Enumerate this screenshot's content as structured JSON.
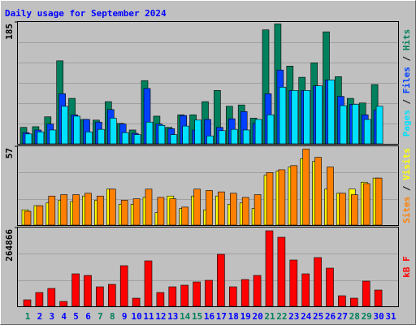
{
  "chart_data": [
    {
      "type": "bar",
      "title": "Daily usage for September 2024",
      "ylim": [
        0,
        185
      ],
      "yticks": [
        185
      ],
      "legend_separator": " / ",
      "series": [
        {
          "name": "Hits",
          "color": "#00805c",
          "values": [
            25,
            26,
            41,
            126,
            69,
            37,
            36,
            64,
            31,
            21,
            96,
            42,
            25,
            44,
            44,
            64,
            81,
            57,
            59,
            39,
            173,
            182,
            118,
            101,
            123,
            170,
            102,
            69,
            62,
            90,
            null
          ]
        },
        {
          "name": "Files",
          "color": "#0040ff",
          "values": [
            17,
            21,
            30,
            76,
            44,
            37,
            33,
            52,
            30,
            16,
            84,
            30,
            23,
            43,
            21,
            37,
            25,
            38,
            49,
            31,
            76,
            112,
            81,
            81,
            88,
            97,
            72,
            60,
            44,
            51,
            null
          ]
        },
        {
          "name": "Pages",
          "color": "#00e0ff",
          "values": [
            15,
            18,
            21,
            57,
            42,
            18,
            22,
            39,
            17,
            14,
            33,
            28,
            14,
            27,
            36,
            12,
            20,
            22,
            21,
            37,
            44,
            86,
            81,
            81,
            88,
            97,
            58,
            60,
            37,
            57,
            null
          ]
        }
      ]
    },
    {
      "type": "bar",
      "ylim": [
        0,
        57
      ],
      "yticks": [
        57
      ],
      "legend_separator": " / ",
      "series": [
        {
          "name": "Visits",
          "color": "#ffff00",
          "values": [
            11,
            14,
            16,
            18,
            17,
            21,
            18,
            26,
            15,
            15,
            20,
            9,
            21,
            12,
            21,
            11,
            21,
            15,
            16,
            12,
            36,
            39,
            42,
            48,
            46,
            26,
            23,
            26,
            31,
            34,
            null
          ]
        },
        {
          "name": "Sites",
          "color": "#ff8000",
          "values": [
            10,
            14,
            21,
            22,
            22,
            23,
            21,
            26,
            18,
            19,
            26,
            20,
            19,
            13,
            26,
            25,
            24,
            23,
            20,
            22,
            38,
            40,
            43,
            55,
            49,
            42,
            23,
            22,
            30,
            34,
            null
          ]
        }
      ]
    },
    {
      "type": "bar",
      "ylim": [
        0,
        264866
      ],
      "yticks": [
        264866
      ],
      "categories": [
        "1",
        "2",
        "3",
        "4",
        "5",
        "6",
        "7",
        "8",
        "9",
        "10",
        "11",
        "12",
        "13",
        "14",
        "15",
        "16",
        "17",
        "18",
        "19",
        "20",
        "21",
        "22",
        "23",
        "24",
        "25",
        "26",
        "27",
        "28",
        "29",
        "30",
        "31"
      ],
      "category_colors": [
        "#00805c",
        "#0000ff",
        "#0000ff",
        "#0000ff",
        "#0000ff",
        "#0000ff",
        "#00805c",
        "#00805c",
        "#0000ff",
        "#0000ff",
        "#0000ff",
        "#0000ff",
        "#0000ff",
        "#00805c",
        "#00805c",
        "#0000ff",
        "#0000ff",
        "#0000ff",
        "#0000ff",
        "#0000ff",
        "#00805c",
        "#00805c",
        "#0000ff",
        "#0000ff",
        "#0000ff",
        "#0000ff",
        "#0000ff",
        "#00805c",
        "#00805c",
        "#0000ff",
        "#0000ff"
      ],
      "series": [
        {
          "name": "kB F",
          "color": "#ff0000",
          "values": [
            21850,
            46430,
            60070,
            16390,
            109220,
            103760,
            65530,
            73720,
            136530,
            27300,
            152900,
            46430,
            65530,
            70990,
            81910,
            87370,
            174750,
            65530,
            90100,
            103760,
            253940,
            232090,
            155640,
            109220,
            163830,
            128330,
            35500,
            27300,
            84650,
            54610,
            null
          ]
        }
      ]
    }
  ]
}
